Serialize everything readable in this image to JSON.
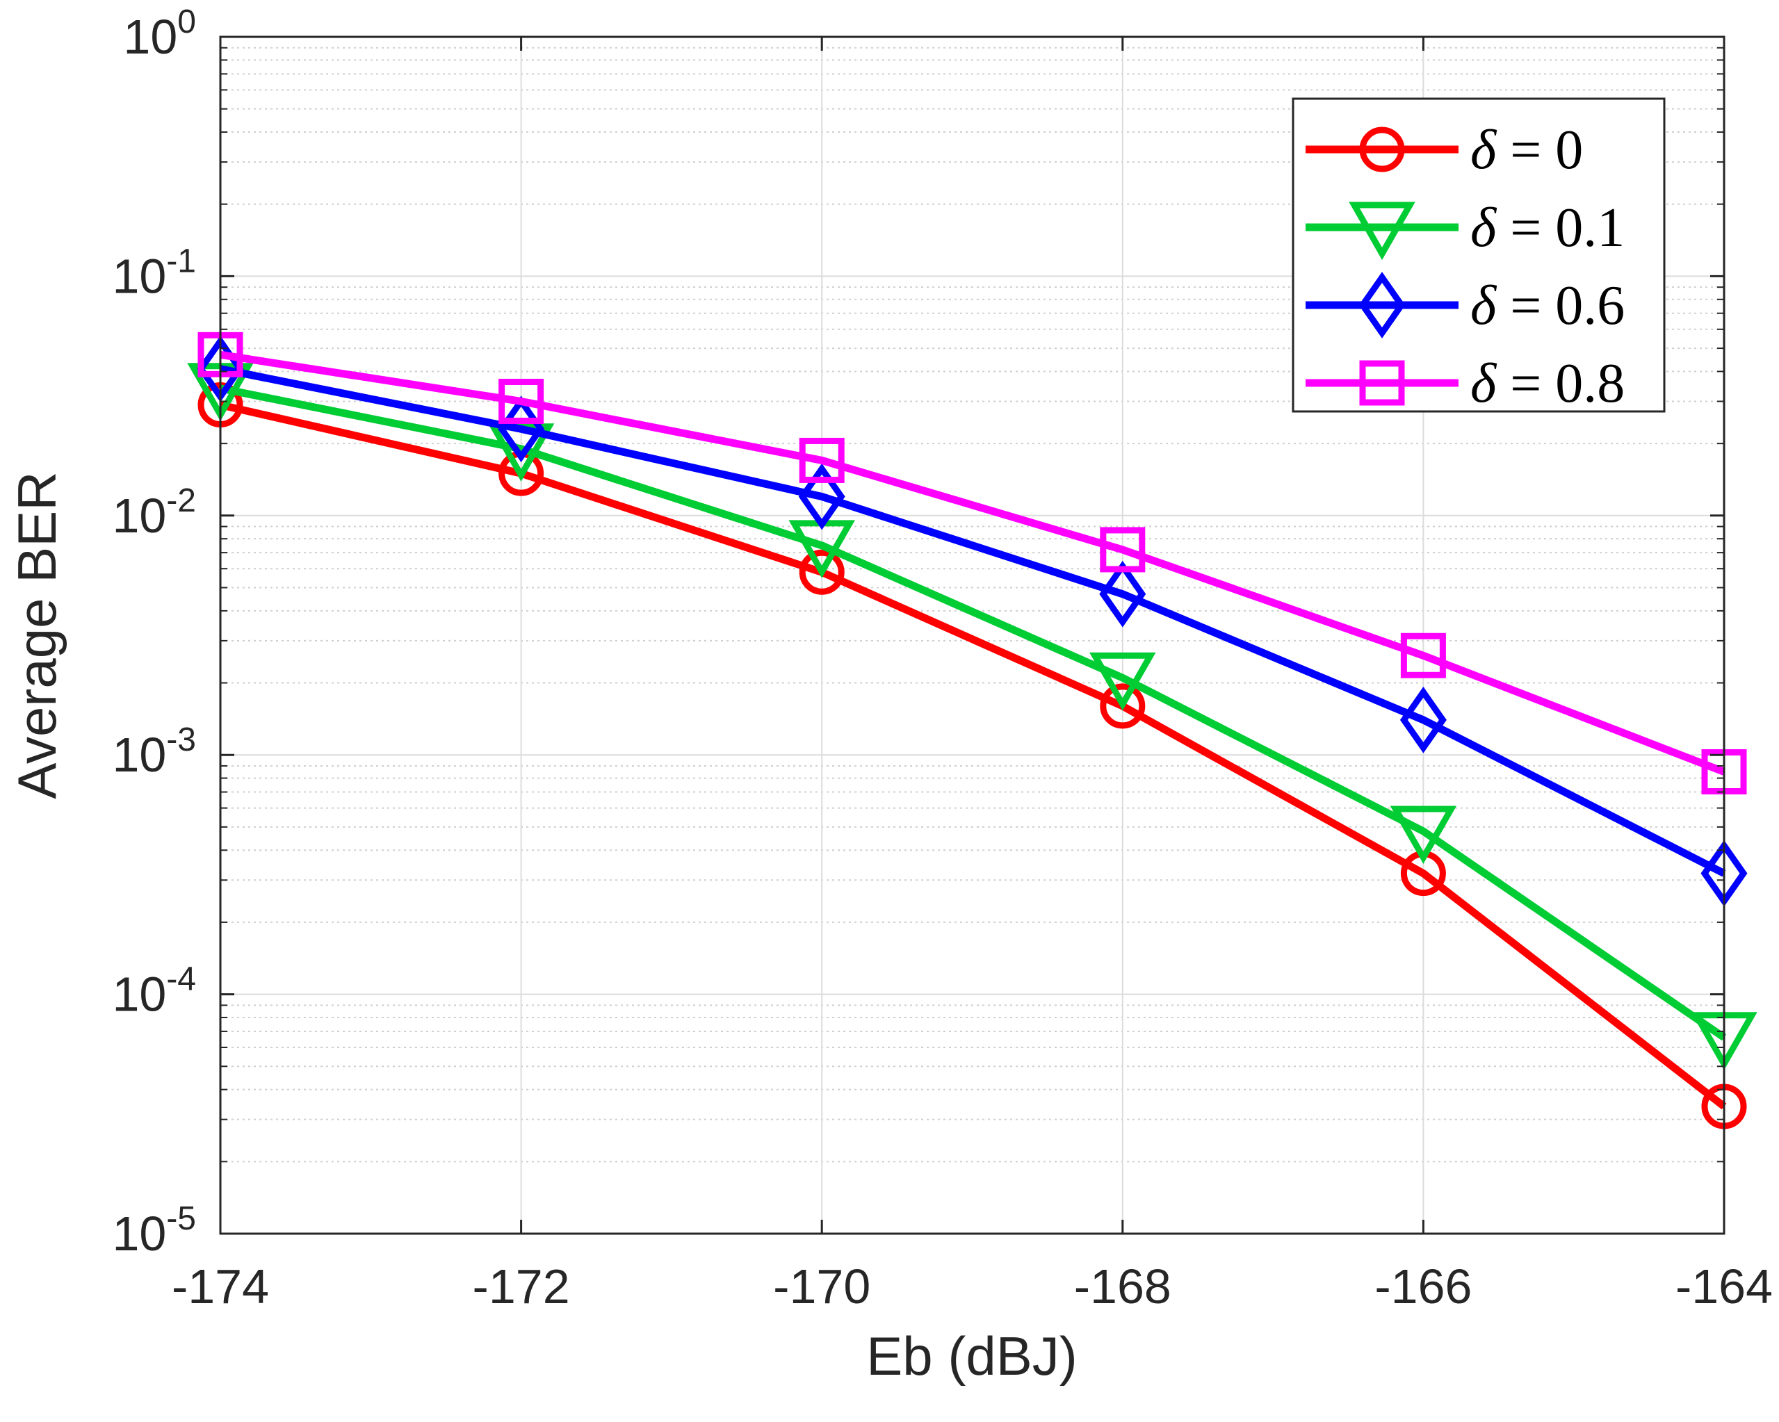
{
  "chart_data": {
    "type": "line",
    "title": "",
    "xlabel": "Eb (dBJ)",
    "ylabel": "Average BER",
    "x": [
      -174,
      -172,
      -170,
      -168,
      -166,
      -164
    ],
    "xlim": [
      -174,
      -164
    ],
    "ylim": [
      1e-05,
      1
    ],
    "yscale": "log",
    "xtick_labels": [
      "-174",
      "-172",
      "-170",
      "-168",
      "-166",
      "-164"
    ],
    "ytick_labels": [
      {
        "base": "10",
        "exp": "-5"
      },
      {
        "base": "10",
        "exp": "-4"
      },
      {
        "base": "10",
        "exp": "-3"
      },
      {
        "base": "10",
        "exp": "-2"
      },
      {
        "base": "10",
        "exp": "-1"
      },
      {
        "base": "10",
        "exp": "0"
      }
    ],
    "grid": true,
    "minor_grid": true,
    "legend_position": "top-right",
    "series": [
      {
        "name": "δ = 0",
        "symbol": "δ",
        "rest": " = 0",
        "color": "#ff0000",
        "marker": "circle",
        "values": [
          0.029,
          0.015,
          0.0058,
          0.0016,
          0.00032,
          3.4e-05
        ]
      },
      {
        "name": "δ = 0.1",
        "symbol": "δ",
        "rest": " = 0.1",
        "color": "#00cc33",
        "marker": "triangle-down",
        "values": [
          0.034,
          0.019,
          0.0075,
          0.0021,
          0.00048,
          6.6e-05
        ]
      },
      {
        "name": "δ = 0.6",
        "symbol": "δ",
        "rest": " = 0.6",
        "color": "#0000ff",
        "marker": "diamond",
        "values": [
          0.041,
          0.023,
          0.012,
          0.0047,
          0.0014,
          0.00032
        ]
      },
      {
        "name": "δ = 0.8",
        "symbol": "δ",
        "rest": " = 0.8",
        "color": "#ff00ff",
        "marker": "square",
        "values": [
          0.047,
          0.03,
          0.017,
          0.0072,
          0.0026,
          0.00085
        ]
      }
    ]
  }
}
